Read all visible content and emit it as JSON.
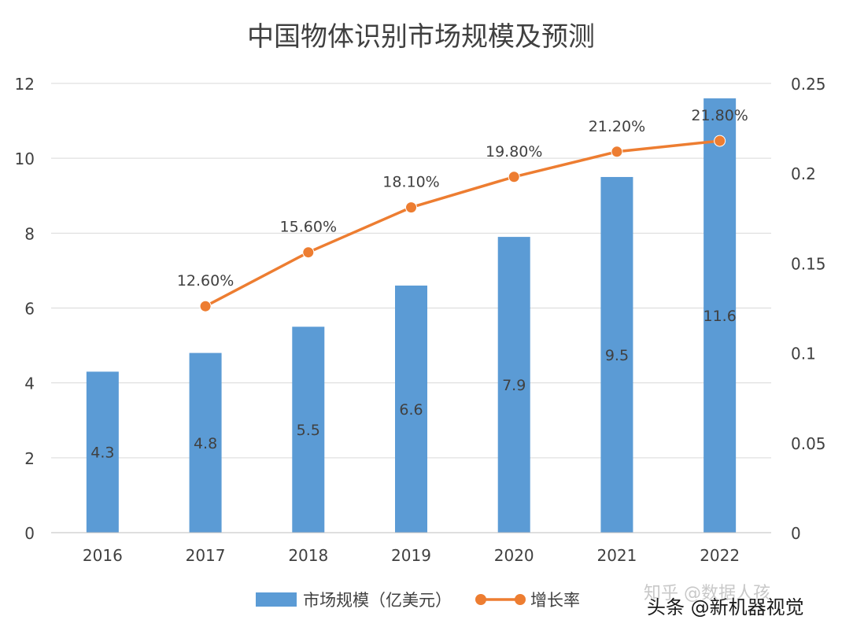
{
  "chart_data": {
    "type": "bar",
    "title": "中国物体识别市场规模及预测",
    "categories": [
      "2016",
      "2017",
      "2018",
      "2019",
      "2020",
      "2021",
      "2022"
    ],
    "series": [
      {
        "name": "市场规模（亿美元）",
        "type": "bar",
        "axis": "left",
        "values": [
          4.3,
          4.8,
          5.5,
          6.6,
          7.9,
          9.5,
          11.6
        ],
        "labels": [
          "4.3",
          "4.8",
          "5.5",
          "6.6",
          "7.9",
          "9.5",
          "11.6"
        ],
        "color": "#5b9bd5"
      },
      {
        "name": "增长率",
        "type": "line",
        "axis": "right",
        "values": [
          null,
          0.126,
          0.156,
          0.181,
          0.198,
          0.212,
          0.218
        ],
        "labels": [
          "",
          "12.60%",
          "15.60%",
          "18.10%",
          "19.80%",
          "21.20%",
          "21.80%"
        ],
        "color": "#ed7d31"
      }
    ],
    "y_left": {
      "min": 0,
      "max": 12,
      "ticks": [
        "0",
        "2",
        "4",
        "6",
        "8",
        "10",
        "12"
      ]
    },
    "y_right": {
      "min": 0,
      "max": 0.25,
      "ticks": [
        "0",
        "0.05",
        "0.1",
        "0.15",
        "0.2",
        "0.25"
      ]
    },
    "grid": true,
    "legend_position": "bottom"
  },
  "watermarks": {
    "zhihu": "知乎 @数据人孩",
    "toutiao": "头条 @新机器视觉"
  }
}
